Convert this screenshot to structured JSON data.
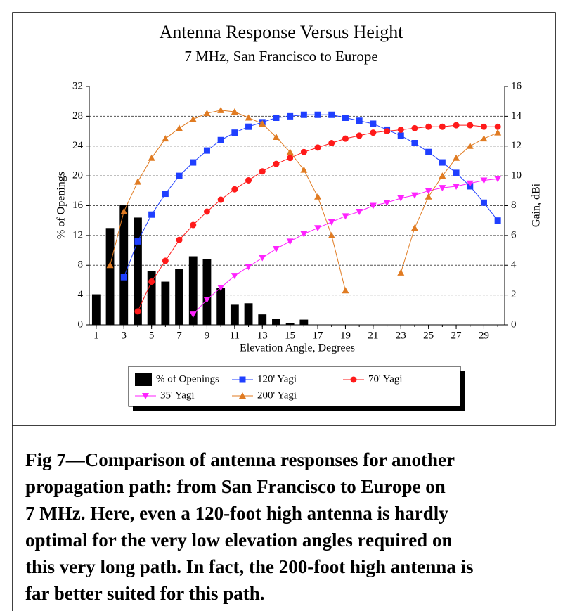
{
  "chart_data": {
    "type": "bar-line",
    "title": "Antenna Response Versus Height",
    "subtitle": "7 MHz, San Francisco to Europe",
    "x_label": "Elevation Angle, Degrees",
    "y_label": "% of Openings",
    "y2_label": "Gain, dBi",
    "x": [
      1,
      2,
      3,
      4,
      5,
      6,
      7,
      8,
      9,
      10,
      11,
      12,
      13,
      14,
      15,
      16,
      17,
      18,
      19,
      20,
      21,
      22,
      23,
      24,
      25,
      26,
      27,
      28,
      29,
      30
    ],
    "xlim": [
      0.5,
      30.5
    ],
    "xticks": [
      1,
      3,
      5,
      7,
      9,
      11,
      13,
      15,
      17,
      19,
      21,
      23,
      25,
      27,
      29
    ],
    "ylim": [
      0,
      32
    ],
    "yticks": [
      0,
      4,
      8,
      12,
      16,
      20,
      24,
      28,
      32
    ],
    "y2lim": [
      0,
      16
    ],
    "y2ticks": [
      0,
      2,
      4,
      6,
      8,
      10,
      12,
      14,
      16
    ],
    "grid": true,
    "series": [
      {
        "name": "% of Openings",
        "kind": "bar",
        "color": "#000000",
        "values": [
          4.1,
          13.0,
          16.1,
          14.4,
          7.2,
          5.8,
          7.5,
          9.2,
          8.8,
          5.0,
          2.7,
          2.9,
          1.4,
          0.8,
          0.2,
          0.7,
          null,
          null,
          null,
          null,
          null,
          null,
          null,
          null,
          null,
          null,
          null,
          null,
          null,
          null
        ]
      },
      {
        "name": "120' Yagi",
        "kind": "line",
        "marker": "square",
        "color": "#1f3fff",
        "axis": "y2",
        "values": [
          null,
          null,
          3.2,
          5.6,
          7.4,
          8.8,
          10.0,
          10.9,
          11.7,
          12.4,
          12.9,
          13.3,
          13.6,
          13.9,
          14.0,
          14.1,
          14.1,
          14.1,
          13.9,
          13.7,
          13.5,
          13.1,
          12.7,
          12.2,
          11.6,
          10.9,
          10.2,
          9.3,
          8.2,
          7.0
        ]
      },
      {
        "name": "70' Yagi",
        "kind": "line",
        "marker": "circle",
        "color": "#ff1a1a",
        "axis": "y2",
        "values": [
          null,
          null,
          null,
          0.9,
          2.9,
          4.3,
          5.7,
          6.7,
          7.6,
          8.4,
          9.1,
          9.7,
          10.3,
          10.8,
          11.2,
          11.6,
          11.9,
          12.2,
          12.5,
          12.7,
          12.9,
          13.0,
          13.1,
          13.2,
          13.3,
          13.3,
          13.4,
          13.4,
          13.3,
          13.3
        ]
      },
      {
        "name": "35' Yagi",
        "kind": "line",
        "marker": "tri-down",
        "color": "#ff22ff",
        "axis": "y2",
        "values": [
          null,
          null,
          null,
          null,
          null,
          null,
          null,
          0.7,
          1.7,
          2.5,
          3.3,
          3.9,
          4.5,
          5.1,
          5.6,
          6.1,
          6.5,
          6.9,
          7.3,
          7.6,
          8.0,
          8.2,
          8.5,
          8.7,
          9.0,
          9.2,
          9.3,
          9.5,
          9.7,
          9.8
        ]
      },
      {
        "name": "200' Yagi",
        "kind": "line",
        "marker": "tri-up",
        "color": "#e07b22",
        "axis": "y2",
        "values": [
          null,
          4.0,
          7.6,
          9.6,
          11.2,
          12.5,
          13.2,
          13.8,
          14.2,
          14.4,
          14.3,
          13.9,
          13.5,
          12.6,
          11.6,
          10.4,
          8.6,
          6.0,
          2.3,
          null,
          null,
          null,
          3.5,
          6.5,
          8.6,
          10.0,
          11.2,
          12.0,
          12.5,
          12.9
        ]
      }
    ],
    "caption": [
      "Fig 7—Comparison of antenna responses for another",
      "propagation path: from San Francisco to Europe on",
      "7 MHz. Here, even a 120-foot high antenna is hardly",
      "optimal for the very low elevation angles required on",
      "this very long path. In fact, the 200-foot high antenna is",
      "far better suited for this path."
    ]
  }
}
